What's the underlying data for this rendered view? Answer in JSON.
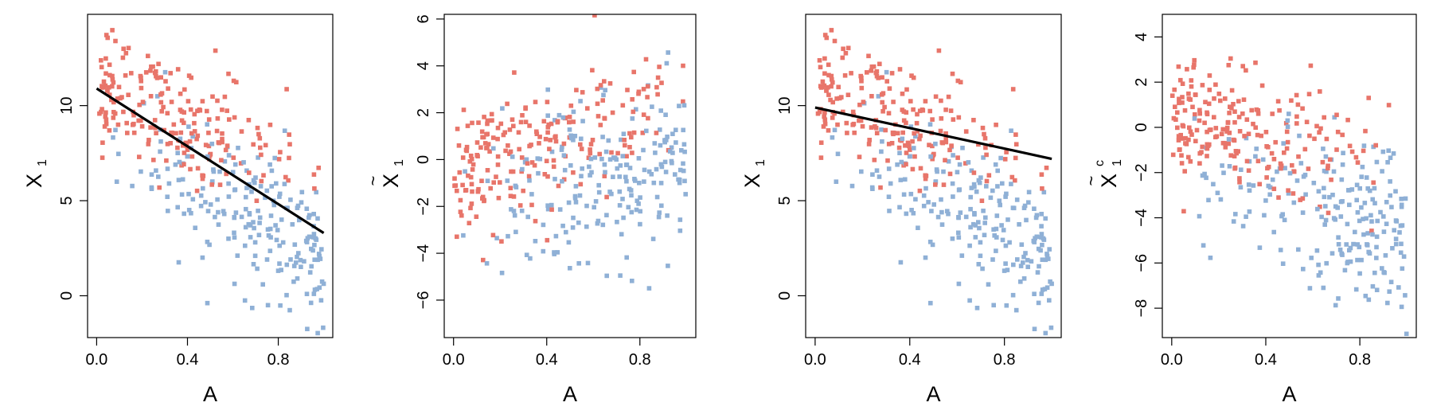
{
  "colors": {
    "group_high": "#e8756a",
    "group_low": "#8fb0d6",
    "line": "#000000",
    "frame": "#000000"
  },
  "chart_data": [
    {
      "type": "scatter",
      "xlabel": "A",
      "ylabel": "X",
      "ylabel_subscript": "1",
      "ylabel_accent": "",
      "ylabel_superscript": "",
      "xlim": [
        -0.04,
        1.04
      ],
      "ylim": [
        -2.2,
        14.8
      ],
      "xticks": [
        0.0,
        0.4,
        0.8
      ],
      "xtick_labels": [
        "0.0",
        "0.4",
        "0.8"
      ],
      "yticks": [
        0,
        5,
        10
      ],
      "ytick_labels": [
        "0",
        "5",
        "10"
      ],
      "trend_line": {
        "x": [
          0.0,
          1.0
        ],
        "y": [
          10.9,
          3.3
        ]
      },
      "seed": 11,
      "generator": {
        "red_mean": [
          11,
          6.5
        ],
        "blue_mean": [
          8.5,
          2.3
        ],
        "sd": 1.5,
        "red_spread": 2.2,
        "blue_spread": 2.6
      }
    },
    {
      "type": "scatter",
      "xlabel": "A",
      "ylabel": "X",
      "ylabel_subscript": "1",
      "ylabel_accent": "~",
      "ylabel_superscript": "",
      "xlim": [
        -0.04,
        1.04
      ],
      "ylim": [
        -7.6,
        6.2
      ],
      "xticks": [
        0.0,
        0.4,
        0.8
      ],
      "xtick_labels": [
        "0.0",
        "0.4",
        "0.8"
      ],
      "yticks": [
        -6,
        -4,
        -2,
        0,
        2,
        4,
        6
      ],
      "ytick_labels": [
        "−6",
        "−4",
        "−2",
        "0",
        "2",
        "4",
        "6"
      ],
      "trend_line": null,
      "seed": 23,
      "generator": {
        "red_mean": [
          -1.0,
          3.2
        ],
        "blue_mean": [
          -2.4,
          0.0
        ],
        "sd": 1.5,
        "red_spread": 2.0,
        "blue_spread": 2.3
      }
    },
    {
      "type": "scatter",
      "xlabel": "A",
      "ylabel": "X",
      "ylabel_subscript": "1",
      "ylabel_accent": "",
      "ylabel_superscript": "",
      "xlim": [
        -0.04,
        1.04
      ],
      "ylim": [
        -2.2,
        14.8
      ],
      "xticks": [
        0.0,
        0.4,
        0.8
      ],
      "xtick_labels": [
        "0.0",
        "0.4",
        "0.8"
      ],
      "yticks": [
        0,
        5,
        10
      ],
      "ytick_labels": [
        "0",
        "5",
        "10"
      ],
      "trend_line": {
        "x": [
          0.0,
          1.0
        ],
        "y": [
          9.9,
          7.2
        ]
      },
      "seed": 11,
      "generator": {
        "red_mean": [
          11,
          6.5
        ],
        "blue_mean": [
          8.5,
          2.3
        ],
        "sd": 1.5,
        "red_spread": 2.2,
        "blue_spread": 2.6
      }
    },
    {
      "type": "scatter",
      "xlabel": "A",
      "ylabel": "X",
      "ylabel_subscript": "1",
      "ylabel_accent": "~",
      "ylabel_superscript": "c",
      "xlim": [
        -0.04,
        1.04
      ],
      "ylim": [
        -9.3,
        5.0
      ],
      "xticks": [
        0.0,
        0.4,
        0.8
      ],
      "xtick_labels": [
        "0.0",
        "0.4",
        "0.8"
      ],
      "yticks": [
        -8,
        -6,
        -4,
        -2,
        0,
        2,
        4
      ],
      "ytick_labels": [
        "−8",
        "−6",
        "−4",
        "−2",
        "0",
        "2",
        "4"
      ],
      "trend_line": null,
      "seed": 37,
      "generator": {
        "red_mean": [
          0.8,
          -1.5
        ],
        "blue_mean": [
          -2.5,
          -4.3
        ],
        "sd": 1.6,
        "red_spread": 2.0,
        "blue_spread": 2.3
      }
    }
  ]
}
